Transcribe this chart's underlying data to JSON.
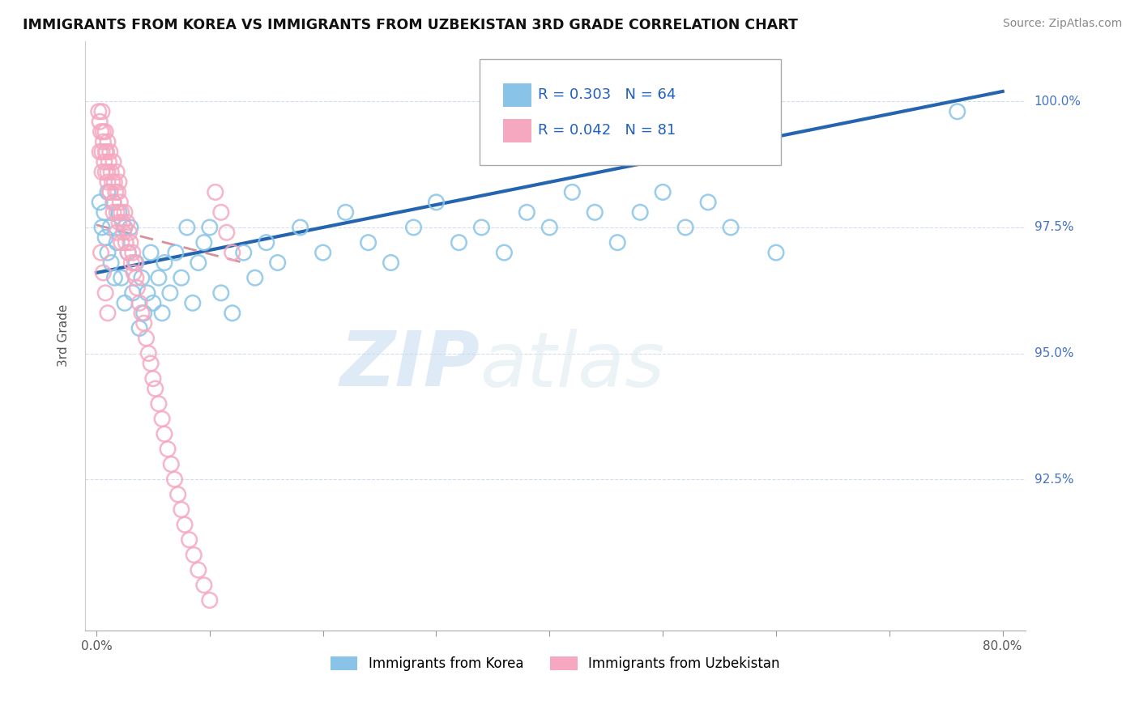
{
  "title": "IMMIGRANTS FROM KOREA VS IMMIGRANTS FROM UZBEKISTAN 3RD GRADE CORRELATION CHART",
  "source": "Source: ZipAtlas.com",
  "ylabel": "3rd Grade",
  "xlim": [
    -0.01,
    0.82
  ],
  "ylim": [
    0.895,
    1.012
  ],
  "xticks": [
    0.0,
    0.1,
    0.2,
    0.3,
    0.4,
    0.5,
    0.6,
    0.7,
    0.8
  ],
  "xticklabels": [
    "0.0%",
    "",
    "",
    "",
    "",
    "",
    "",
    "",
    "80.0%"
  ],
  "yticks_right": [
    1.0,
    0.975,
    0.95,
    0.925
  ],
  "yticklabels_right": [
    "100.0%",
    "97.5%",
    "95.0%",
    "92.5%"
  ],
  "legend_r_korea": "R = 0.303",
  "legend_n_korea": "N = 64",
  "legend_r_uzbek": "R = 0.042",
  "legend_n_uzbek": "N = 81",
  "korea_color": "#89c4e8",
  "uzbek_color": "#f5a8c0",
  "korea_line_color": "#2565b0",
  "uzbek_line_color": "#d8909a",
  "watermark_zip": "ZIP",
  "watermark_atlas": "atlas",
  "korea_scatter_x": [
    0.003,
    0.005,
    0.007,
    0.008,
    0.01,
    0.01,
    0.012,
    0.013,
    0.015,
    0.016,
    0.018,
    0.02,
    0.022,
    0.025,
    0.025,
    0.028,
    0.03,
    0.032,
    0.035,
    0.038,
    0.04,
    0.042,
    0.045,
    0.048,
    0.05,
    0.055,
    0.058,
    0.06,
    0.065,
    0.07,
    0.075,
    0.08,
    0.085,
    0.09,
    0.095,
    0.1,
    0.11,
    0.12,
    0.13,
    0.14,
    0.15,
    0.16,
    0.18,
    0.2,
    0.22,
    0.24,
    0.26,
    0.28,
    0.3,
    0.32,
    0.34,
    0.36,
    0.38,
    0.4,
    0.42,
    0.44,
    0.46,
    0.48,
    0.5,
    0.52,
    0.54,
    0.56,
    0.6,
    0.76
  ],
  "korea_scatter_y": [
    0.98,
    0.975,
    0.978,
    0.973,
    0.982,
    0.97,
    0.975,
    0.968,
    0.98,
    0.965,
    0.972,
    0.978,
    0.965,
    0.975,
    0.96,
    0.97,
    0.975,
    0.962,
    0.968,
    0.955,
    0.965,
    0.958,
    0.962,
    0.97,
    0.96,
    0.965,
    0.958,
    0.968,
    0.962,
    0.97,
    0.965,
    0.975,
    0.96,
    0.968,
    0.972,
    0.975,
    0.962,
    0.958,
    0.97,
    0.965,
    0.972,
    0.968,
    0.975,
    0.97,
    0.978,
    0.972,
    0.968,
    0.975,
    0.98,
    0.972,
    0.975,
    0.97,
    0.978,
    0.975,
    0.982,
    0.978,
    0.972,
    0.978,
    0.982,
    0.975,
    0.98,
    0.975,
    0.97,
    0.998
  ],
  "uzbek_scatter_x": [
    0.002,
    0.003,
    0.004,
    0.005,
    0.005,
    0.006,
    0.007,
    0.008,
    0.008,
    0.009,
    0.01,
    0.01,
    0.011,
    0.012,
    0.012,
    0.013,
    0.014,
    0.015,
    0.015,
    0.016,
    0.017,
    0.018,
    0.018,
    0.019,
    0.02,
    0.02,
    0.021,
    0.022,
    0.022,
    0.023,
    0.024,
    0.025,
    0.026,
    0.027,
    0.028,
    0.029,
    0.03,
    0.031,
    0.032,
    0.033,
    0.034,
    0.035,
    0.036,
    0.038,
    0.04,
    0.042,
    0.044,
    0.046,
    0.048,
    0.05,
    0.052,
    0.055,
    0.058,
    0.06,
    0.063,
    0.066,
    0.069,
    0.072,
    0.075,
    0.078,
    0.082,
    0.086,
    0.09,
    0.095,
    0.1,
    0.105,
    0.11,
    0.115,
    0.12,
    0.006,
    0.008,
    0.01,
    0.012,
    0.015,
    0.018,
    0.004,
    0.006,
    0.008,
    0.01,
    0.003,
    0.005
  ],
  "uzbek_scatter_y": [
    0.998,
    0.996,
    0.994,
    0.998,
    0.99,
    0.992,
    0.988,
    0.994,
    0.986,
    0.99,
    0.992,
    0.984,
    0.988,
    0.99,
    0.982,
    0.986,
    0.984,
    0.988,
    0.98,
    0.984,
    0.982,
    0.986,
    0.978,
    0.982,
    0.984,
    0.976,
    0.98,
    0.978,
    0.972,
    0.976,
    0.974,
    0.978,
    0.972,
    0.976,
    0.97,
    0.974,
    0.972,
    0.968,
    0.97,
    0.966,
    0.968,
    0.965,
    0.963,
    0.96,
    0.958,
    0.956,
    0.953,
    0.95,
    0.948,
    0.945,
    0.943,
    0.94,
    0.937,
    0.934,
    0.931,
    0.928,
    0.925,
    0.922,
    0.919,
    0.916,
    0.913,
    0.91,
    0.907,
    0.904,
    0.901,
    0.982,
    0.978,
    0.974,
    0.97,
    0.994,
    0.99,
    0.986,
    0.982,
    0.978,
    0.974,
    0.97,
    0.966,
    0.962,
    0.958,
    0.99,
    0.986
  ]
}
